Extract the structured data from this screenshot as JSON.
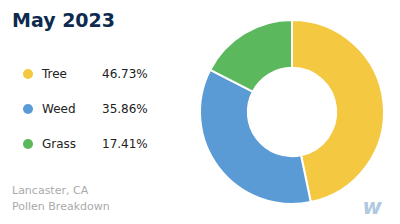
{
  "chart_data": {
    "type": "pie",
    "title": "May 2023",
    "subtitle": "Lancaster, CA\nPollen Breakdown",
    "annotations": [
      "w"
    ],
    "categories": [
      "Tree",
      "Weed",
      "Grass"
    ],
    "values": [
      46.73,
      35.86,
      17.41
    ],
    "value_labels": [
      "46.73%",
      "35.86%",
      "17.41%"
    ],
    "colors": [
      "#f5c842",
      "#5b9bd5",
      "#5cb85c"
    ]
  }
}
